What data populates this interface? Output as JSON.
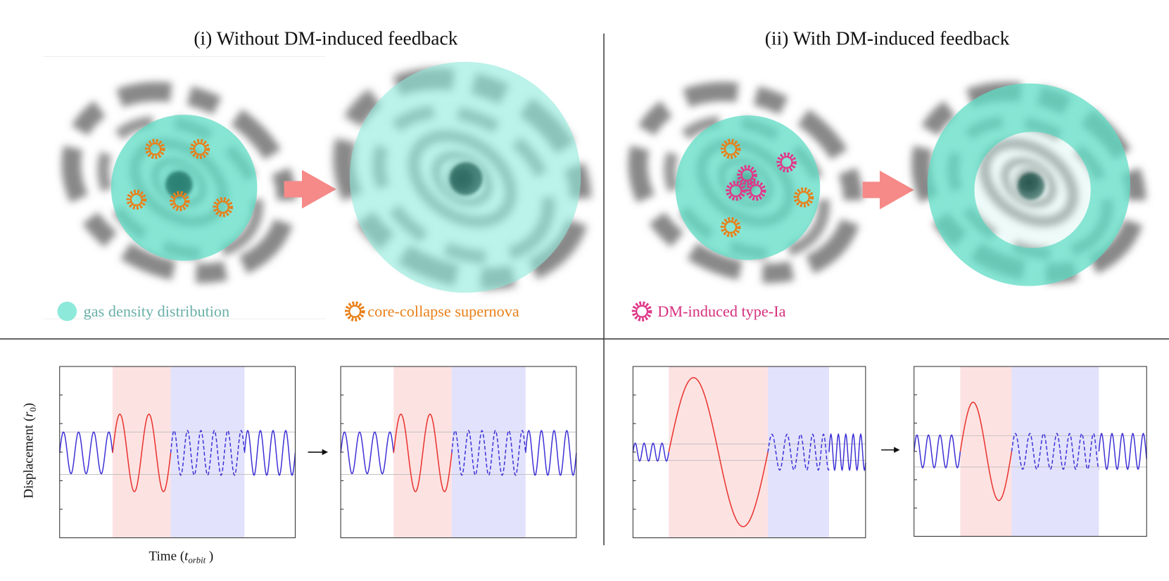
{
  "panels": [
    {
      "title": "(i) Without DM-induced feedback",
      "legend": [
        {
          "label": "gas density distribution"
        },
        {
          "label": "core-collapse supernova"
        }
      ]
    },
    {
      "title": "(ii) With DM-induced feedback",
      "legend": [
        {
          "label": "DM-induced type-Ia"
        }
      ]
    }
  ],
  "axes": {
    "y_label": {
      "prefix": "Displacement (",
      "symbol": "r",
      "subscript": "0",
      "suffix": ")"
    },
    "x_label": {
      "prefix": "Time (",
      "symbol": "t",
      "subscript": "orbit",
      "suffix": " )"
    }
  }
}
